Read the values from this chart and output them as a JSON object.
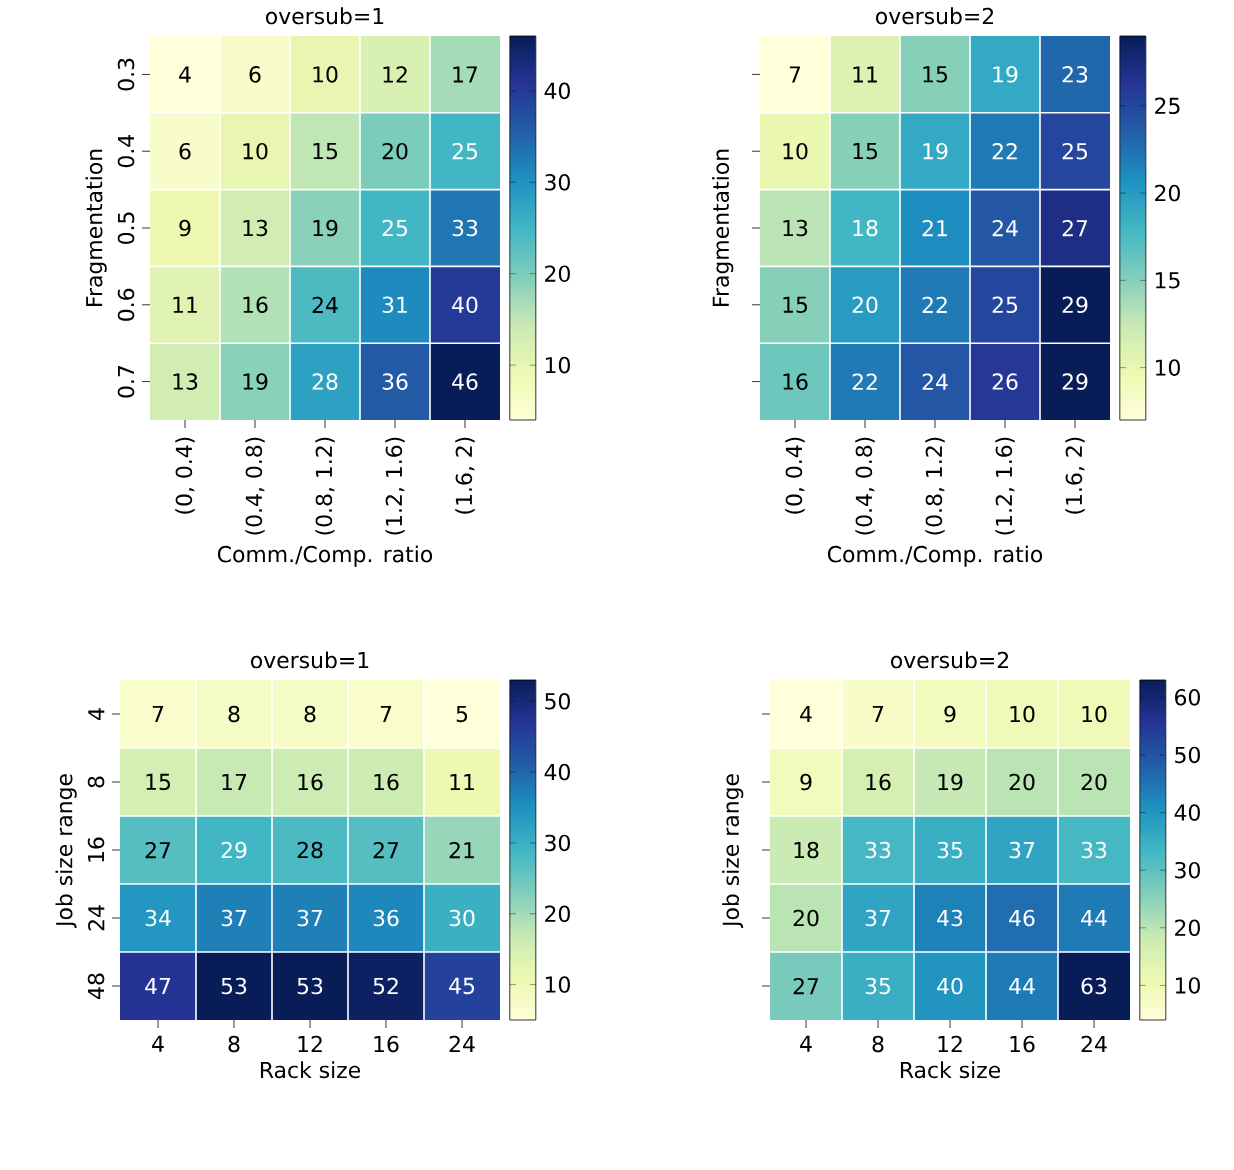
{
  "chart_data": [
    {
      "type": "heatmap",
      "title": "oversub=1",
      "xlabel": "Comm./Comp. ratio",
      "ylabel": "Fragmentation",
      "categories": [
        "(0, 0.4)",
        "(0.4, 0.8)",
        "(0.8, 1.2)",
        "(1.2, 1.6)",
        "(1.6, 2)"
      ],
      "y_categories": [
        "0.3",
        "0.4",
        "0.5",
        "0.6",
        "0.7"
      ],
      "cells": [
        [
          4,
          6,
          10,
          12,
          17
        ],
        [
          6,
          10,
          15,
          20,
          25
        ],
        [
          9,
          13,
          19,
          25,
          33
        ],
        [
          11,
          16,
          24,
          31,
          40
        ],
        [
          13,
          19,
          28,
          36,
          46
        ]
      ],
      "clim": [
        4,
        46
      ],
      "cticks": [
        10,
        20,
        30,
        40
      ],
      "data_labels": true
    },
    {
      "type": "heatmap",
      "title": "oversub=2",
      "xlabel": "Comm./Comp. ratio",
      "ylabel": "Fragmentation",
      "categories": [
        "(0, 0.4)",
        "(0.4, 0.8)",
        "(0.8, 1.2)",
        "(1.2, 1.6)",
        "(1.6, 2)"
      ],
      "y_categories": [
        "0.3",
        "0.4",
        "0.5",
        "0.6",
        "0.7"
      ],
      "cells": [
        [
          7,
          11,
          15,
          19,
          23
        ],
        [
          10,
          15,
          19,
          22,
          25
        ],
        [
          13,
          18,
          21,
          24,
          27
        ],
        [
          15,
          20,
          22,
          25,
          29
        ],
        [
          16,
          22,
          24,
          26,
          29
        ]
      ],
      "clim": [
        7,
        29
      ],
      "cticks": [
        10,
        15,
        20,
        25
      ],
      "data_labels": true,
      "tick_labels": "x"
    },
    {
      "type": "heatmap",
      "title": "oversub=1",
      "xlabel": "Rack size",
      "ylabel": "Job size range",
      "categories": [
        "4",
        "8",
        "12",
        "16",
        "24"
      ],
      "y_categories": [
        "4",
        "8",
        "16",
        "24",
        "48"
      ],
      "cells": [
        [
          7,
          8,
          8,
          7,
          5
        ],
        [
          15,
          17,
          16,
          16,
          11
        ],
        [
          27,
          29,
          28,
          27,
          21
        ],
        [
          34,
          37,
          37,
          36,
          30
        ],
        [
          47,
          53,
          53,
          52,
          45
        ]
      ],
      "clim": [
        5,
        53
      ],
      "cticks": [
        10,
        20,
        30,
        40,
        50
      ],
      "data_labels": true
    },
    {
      "type": "heatmap",
      "title": "oversub=2",
      "xlabel": "Rack size",
      "ylabel": "Job size range",
      "categories": [
        "4",
        "8",
        "12",
        "16",
        "24"
      ],
      "y_categories": [
        "4",
        "8",
        "16",
        "24",
        "48"
      ],
      "cells": [
        [
          4,
          7,
          9,
          10,
          10
        ],
        [
          9,
          16,
          19,
          20,
          20
        ],
        [
          18,
          33,
          35,
          37,
          33
        ],
        [
          20,
          37,
          43,
          46,
          44
        ],
        [
          27,
          35,
          40,
          44,
          63
        ]
      ],
      "clim": [
        4,
        63
      ],
      "cticks": [
        10,
        20,
        30,
        40,
        50,
        60
      ],
      "data_labels": true,
      "tick_labels": "x"
    }
  ]
}
